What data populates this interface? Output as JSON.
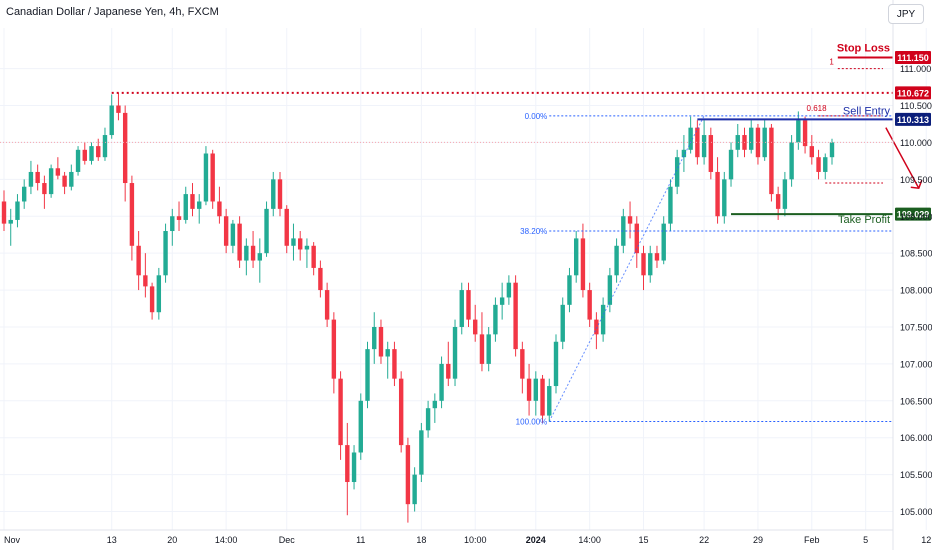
{
  "header": {
    "title": "Canadian Dollar / Japanese Yen, 4h, FXCM",
    "currency_button": "JPY"
  },
  "chart_data": {
    "type": "candlestick",
    "ylim": [
      104.75,
      111.55
    ],
    "y_ticks": [
      "111.000",
      "110.500",
      "110.000",
      "109.500",
      "109.000",
      "108.500",
      "108.000",
      "107.500",
      "107.000",
      "106.500",
      "106.000",
      "105.500",
      "105.000"
    ],
    "y_tick_values": [
      111.0,
      110.5,
      110.0,
      109.5,
      109.0,
      108.5,
      108.0,
      107.5,
      107.0,
      106.5,
      106.0,
      105.5,
      105.0
    ],
    "x_ticks": [
      {
        "label": "Nov",
        "i": 0
      },
      {
        "label": "13",
        "i": 16
      },
      {
        "label": "20",
        "i": 25
      },
      {
        "label": "14:00",
        "i": 33
      },
      {
        "label": "Dec",
        "i": 42
      },
      {
        "label": "11",
        "i": 53
      },
      {
        "label": "18",
        "i": 62
      },
      {
        "label": "10:00",
        "i": 70
      },
      {
        "label": "2024",
        "i": 79
      },
      {
        "label": "14:00",
        "i": 87
      },
      {
        "label": "15",
        "i": 95
      },
      {
        "label": "22",
        "i": 104
      },
      {
        "label": "29",
        "i": 112
      },
      {
        "label": "Feb",
        "i": 120
      },
      {
        "label": "5",
        "i": 128
      },
      {
        "label": "12",
        "i": 137
      }
    ],
    "colors": {
      "up": "#22ab94",
      "down": "#f23645",
      "blue": "#1e2fa8",
      "green": "#1b5e20",
      "red": "#d0021b",
      "grid": "#f0f3fa",
      "fib": "#2962ff"
    },
    "price_labels": [
      {
        "text": "111.150",
        "value": 111.15,
        "color": "#d0021b"
      },
      {
        "text": "110.672",
        "value": 110.672,
        "color": "#d0021b"
      },
      {
        "text": "110.313",
        "value": 110.313,
        "color": "#0b1e7a"
      },
      {
        "text": "109.029",
        "value": 109.029,
        "color": "#1b5e20"
      }
    ],
    "levels": {
      "stop_loss": 111.15,
      "swing_high": 110.672,
      "sell_entry": 110.313,
      "take_profit": 109.029,
      "current": 110.0,
      "fib_0": 110.36,
      "fib_382": 108.8,
      "fib_100": 106.22,
      "fib_618_level": 110.36,
      "fib_1_level": 111.0,
      "tp_dotted": 109.45
    },
    "annotations": {
      "stop_loss": "Stop Loss",
      "sell_entry": "Sell Entry",
      "take_profit": "Take Profit",
      "fib_0": "0.00%",
      "fib_382": "38.20%",
      "fib_100": "100.00%",
      "fib_618": "0.618",
      "fib_1": "1"
    },
    "ohlc": [
      [
        109.2,
        109.35,
        108.8,
        108.9
      ],
      [
        108.9,
        109.1,
        108.6,
        108.95
      ],
      [
        108.95,
        109.3,
        108.85,
        109.2
      ],
      [
        109.2,
        109.5,
        109.1,
        109.4
      ],
      [
        109.4,
        109.75,
        109.3,
        109.6
      ],
      [
        109.6,
        109.7,
        109.35,
        109.45
      ],
      [
        109.45,
        109.55,
        109.1,
        109.3
      ],
      [
        109.3,
        109.7,
        109.25,
        109.65
      ],
      [
        109.65,
        109.8,
        109.5,
        109.55
      ],
      [
        109.55,
        109.6,
        109.3,
        109.4
      ],
      [
        109.4,
        109.7,
        109.35,
        109.6
      ],
      [
        109.6,
        109.95,
        109.55,
        109.9
      ],
      [
        109.9,
        110.0,
        109.7,
        109.75
      ],
      [
        109.75,
        110.0,
        109.7,
        109.95
      ],
      [
        109.95,
        110.05,
        109.75,
        109.8
      ],
      [
        109.8,
        110.2,
        109.75,
        110.1
      ],
      [
        110.1,
        110.65,
        110.05,
        110.5
      ],
      [
        110.5,
        110.67,
        110.3,
        110.4
      ],
      [
        110.4,
        110.5,
        109.2,
        109.45
      ],
      [
        109.45,
        109.55,
        108.4,
        108.6
      ],
      [
        108.6,
        108.8,
        108.0,
        108.2
      ],
      [
        108.2,
        108.5,
        107.9,
        108.05
      ],
      [
        108.05,
        108.1,
        107.6,
        107.7
      ],
      [
        107.7,
        108.3,
        107.6,
        108.2
      ],
      [
        108.2,
        108.9,
        108.1,
        108.8
      ],
      [
        108.8,
        109.1,
        108.6,
        109.0
      ],
      [
        109.0,
        109.2,
        108.8,
        108.95
      ],
      [
        108.95,
        109.4,
        108.9,
        109.3
      ],
      [
        109.3,
        109.45,
        109.0,
        109.1
      ],
      [
        109.1,
        109.3,
        108.9,
        109.2
      ],
      [
        109.2,
        109.95,
        109.15,
        109.85
      ],
      [
        109.85,
        109.9,
        109.1,
        109.2
      ],
      [
        109.2,
        109.4,
        108.9,
        109.0
      ],
      [
        109.0,
        109.1,
        108.5,
        108.6
      ],
      [
        108.6,
        108.95,
        108.5,
        108.9
      ],
      [
        108.9,
        109.0,
        108.3,
        108.4
      ],
      [
        108.4,
        108.7,
        108.2,
        108.6
      ],
      [
        108.6,
        108.8,
        108.3,
        108.4
      ],
      [
        108.4,
        108.7,
        108.1,
        108.5
      ],
      [
        108.5,
        109.2,
        108.45,
        109.1
      ],
      [
        109.1,
        109.6,
        109.0,
        109.5
      ],
      [
        109.5,
        109.6,
        109.0,
        109.1
      ],
      [
        109.1,
        109.15,
        108.5,
        108.6
      ],
      [
        108.6,
        108.9,
        108.4,
        108.7
      ],
      [
        108.7,
        108.8,
        108.4,
        108.55
      ],
      [
        108.55,
        108.7,
        108.3,
        108.6
      ],
      [
        108.6,
        108.65,
        108.2,
        108.3
      ],
      [
        108.3,
        108.4,
        107.9,
        108.0
      ],
      [
        108.0,
        108.1,
        107.5,
        107.6
      ],
      [
        107.6,
        107.7,
        106.6,
        106.8
      ],
      [
        106.8,
        106.9,
        105.7,
        105.9
      ],
      [
        105.9,
        106.2,
        104.95,
        105.4
      ],
      [
        105.4,
        105.9,
        105.3,
        105.8
      ],
      [
        105.8,
        106.6,
        105.7,
        106.5
      ],
      [
        106.5,
        107.3,
        106.4,
        107.2
      ],
      [
        107.2,
        107.7,
        107.0,
        107.5
      ],
      [
        107.5,
        107.6,
        107.0,
        107.1
      ],
      [
        107.1,
        107.3,
        106.8,
        107.2
      ],
      [
        107.2,
        107.3,
        106.7,
        106.8
      ],
      [
        106.8,
        106.9,
        105.8,
        105.9
      ],
      [
        105.9,
        106.0,
        104.85,
        105.1
      ],
      [
        105.1,
        105.6,
        105.0,
        105.5
      ],
      [
        105.5,
        106.2,
        105.4,
        106.1
      ],
      [
        106.1,
        106.5,
        106.0,
        106.4
      ],
      [
        106.4,
        106.6,
        106.2,
        106.5
      ],
      [
        106.5,
        107.1,
        106.4,
        107.0
      ],
      [
        107.0,
        107.3,
        106.7,
        106.8
      ],
      [
        106.8,
        107.6,
        106.7,
        107.5
      ],
      [
        107.5,
        108.1,
        107.4,
        108.0
      ],
      [
        108.0,
        108.1,
        107.5,
        107.6
      ],
      [
        107.6,
        107.8,
        107.3,
        107.4
      ],
      [
        107.4,
        107.7,
        106.9,
        107.0
      ],
      [
        107.0,
        107.5,
        106.9,
        107.4
      ],
      [
        107.4,
        107.9,
        107.3,
        107.8
      ],
      [
        107.8,
        108.1,
        107.6,
        107.9
      ],
      [
        107.9,
        108.2,
        107.8,
        108.1
      ],
      [
        108.1,
        108.2,
        107.1,
        107.2
      ],
      [
        107.2,
        107.3,
        106.6,
        106.8
      ],
      [
        106.8,
        107.0,
        106.3,
        106.5
      ],
      [
        106.5,
        106.9,
        106.3,
        106.8
      ],
      [
        106.8,
        106.85,
        106.2,
        106.3
      ],
      [
        106.3,
        106.8,
        106.22,
        106.7
      ],
      [
        106.7,
        107.4,
        106.6,
        107.3
      ],
      [
        107.3,
        107.9,
        107.2,
        107.8
      ],
      [
        107.8,
        108.3,
        107.7,
        108.2
      ],
      [
        108.2,
        108.8,
        108.1,
        108.7
      ],
      [
        108.7,
        108.9,
        107.9,
        108.0
      ],
      [
        108.0,
        108.1,
        107.5,
        107.6
      ],
      [
        107.6,
        107.7,
        107.2,
        107.4
      ],
      [
        107.4,
        107.9,
        107.3,
        107.8
      ],
      [
        107.8,
        108.3,
        107.7,
        108.2
      ],
      [
        108.2,
        108.7,
        108.1,
        108.6
      ],
      [
        108.6,
        109.1,
        108.5,
        109.0
      ],
      [
        109.0,
        109.2,
        108.7,
        108.9
      ],
      [
        108.9,
        109.0,
        108.3,
        108.5
      ],
      [
        108.5,
        108.6,
        108.0,
        108.2
      ],
      [
        108.2,
        108.6,
        108.1,
        108.5
      ],
      [
        108.5,
        108.6,
        108.3,
        108.4
      ],
      [
        108.4,
        109.0,
        108.35,
        108.9
      ],
      [
        108.9,
        109.5,
        108.8,
        109.4
      ],
      [
        109.4,
        109.9,
        109.3,
        109.8
      ],
      [
        109.8,
        110.1,
        109.6,
        109.9
      ],
      [
        109.9,
        110.35,
        109.85,
        110.2
      ],
      [
        110.2,
        110.3,
        109.7,
        109.8
      ],
      [
        109.8,
        110.3,
        109.7,
        110.1
      ],
      [
        110.1,
        110.2,
        109.5,
        109.6
      ],
      [
        109.6,
        109.8,
        108.9,
        109.0
      ],
      [
        109.0,
        109.6,
        108.9,
        109.5
      ],
      [
        109.5,
        110.0,
        109.4,
        109.9
      ],
      [
        109.9,
        110.25,
        109.8,
        110.1
      ],
      [
        110.1,
        110.2,
        109.8,
        109.9
      ],
      [
        109.9,
        110.3,
        109.85,
        110.2
      ],
      [
        110.2,
        110.25,
        109.7,
        109.8
      ],
      [
        109.8,
        110.3,
        109.75,
        110.2
      ],
      [
        110.2,
        110.25,
        109.2,
        109.3
      ],
      [
        109.3,
        109.4,
        108.95,
        109.1
      ],
      [
        109.1,
        109.6,
        109.0,
        109.5
      ],
      [
        109.5,
        110.1,
        109.4,
        110.0
      ],
      [
        110.0,
        110.42,
        109.9,
        110.3
      ],
      [
        110.3,
        110.35,
        109.85,
        109.95
      ],
      [
        109.95,
        110.1,
        109.7,
        109.8
      ],
      [
        109.8,
        109.9,
        109.5,
        109.6
      ],
      [
        109.6,
        109.85,
        109.5,
        109.8
      ],
      [
        109.8,
        110.05,
        109.7,
        110.0
      ]
    ]
  }
}
